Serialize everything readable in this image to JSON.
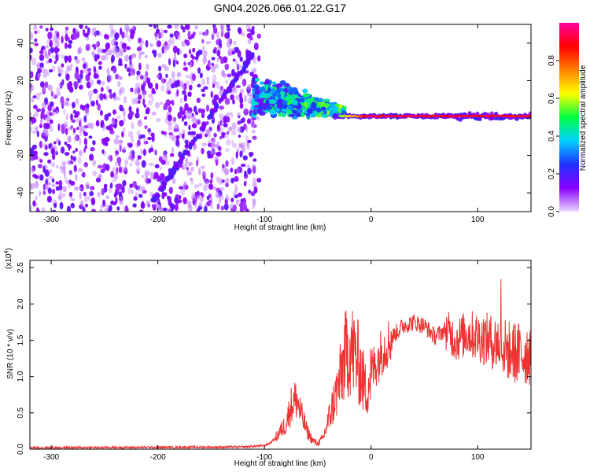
{
  "chart_data": [
    {
      "type": "heatmap",
      "title": "GN04.2026.066.01.22.G17",
      "xlabel": "Height of straight line (km)",
      "ylabel": "Frequency (Hz)",
      "xlim": [
        -320,
        150
      ],
      "ylim": [
        -50,
        50
      ],
      "xticks": [
        "-300",
        "-200",
        "-100",
        "0",
        "100"
      ],
      "yticks": [
        "-40",
        "-20",
        "0",
        "20",
        "40"
      ],
      "colorbar": {
        "label": "Normalized spectral amplitude",
        "range": [
          0,
          1
        ],
        "ticks": [
          "0.0",
          "0.2",
          "0.4",
          "0.6",
          "0.8"
        ],
        "colors": [
          "#e8d8ff",
          "#8a00ff",
          "#2030ff",
          "#00d0ff",
          "#00ff40",
          "#ffff00",
          "#ff8000",
          "#ff0000",
          "#ff00a0"
        ]
      },
      "features": [
        {
          "name": "noise",
          "x": [
            -320,
            -105
          ],
          "y": [
            -50,
            50
          ],
          "amplitude": 0.1
        },
        {
          "name": "chirp",
          "x": [
            -205,
            -110
          ],
          "y": [
            -45,
            35
          ],
          "amplitude": 0.15
        },
        {
          "name": "converging",
          "x": [
            -110,
            -25
          ],
          "y": [
            -10,
            20
          ],
          "amplitude": 0.3
        },
        {
          "name": "stable",
          "x": [
            -25,
            150
          ],
          "y": [
            0,
            2
          ],
          "amplitude": 0.95
        }
      ]
    },
    {
      "type": "line",
      "xlabel": "Height of straight line (km)",
      "ylabel": "SNR (10 * v/v)",
      "multiplier": "(x10",
      "multiplier_exp": "4",
      "multiplier_close": ")",
      "xlim": [
        -320,
        150
      ],
      "ylim": [
        0,
        2.6
      ],
      "xticks": [
        "-300",
        "-200",
        "-100",
        "0",
        "100"
      ],
      "yticks": [
        "0.0",
        "0.5",
        "1.0",
        "1.5",
        "2.0",
        "2.5"
      ],
      "color": "#ee3333",
      "series": [
        {
          "x": [
            -320,
            -120,
            -100,
            -95,
            -90,
            -80,
            -75,
            -70,
            -65,
            -60,
            -55,
            -50,
            -45,
            -40,
            -35,
            -30,
            -25,
            -20,
            -15,
            -10,
            -5,
            0,
            10,
            20,
            30,
            40,
            50,
            60,
            70,
            80,
            90,
            100,
            110,
            120,
            125,
            130,
            140,
            150
          ],
          "y": [
            0.02,
            0.03,
            0.05,
            0.08,
            0.15,
            0.35,
            0.6,
            0.7,
            0.45,
            0.25,
            0.12,
            0.08,
            0.15,
            0.4,
            0.65,
            0.9,
            1.25,
            1.4,
            1.3,
            1.1,
            0.8,
            1.05,
            1.35,
            1.55,
            1.7,
            1.75,
            1.7,
            1.55,
            1.65,
            1.5,
            1.6,
            1.55,
            1.5,
            1.45,
            1.4,
            1.35,
            1.3,
            1.35
          ]
        }
      ]
    }
  ]
}
